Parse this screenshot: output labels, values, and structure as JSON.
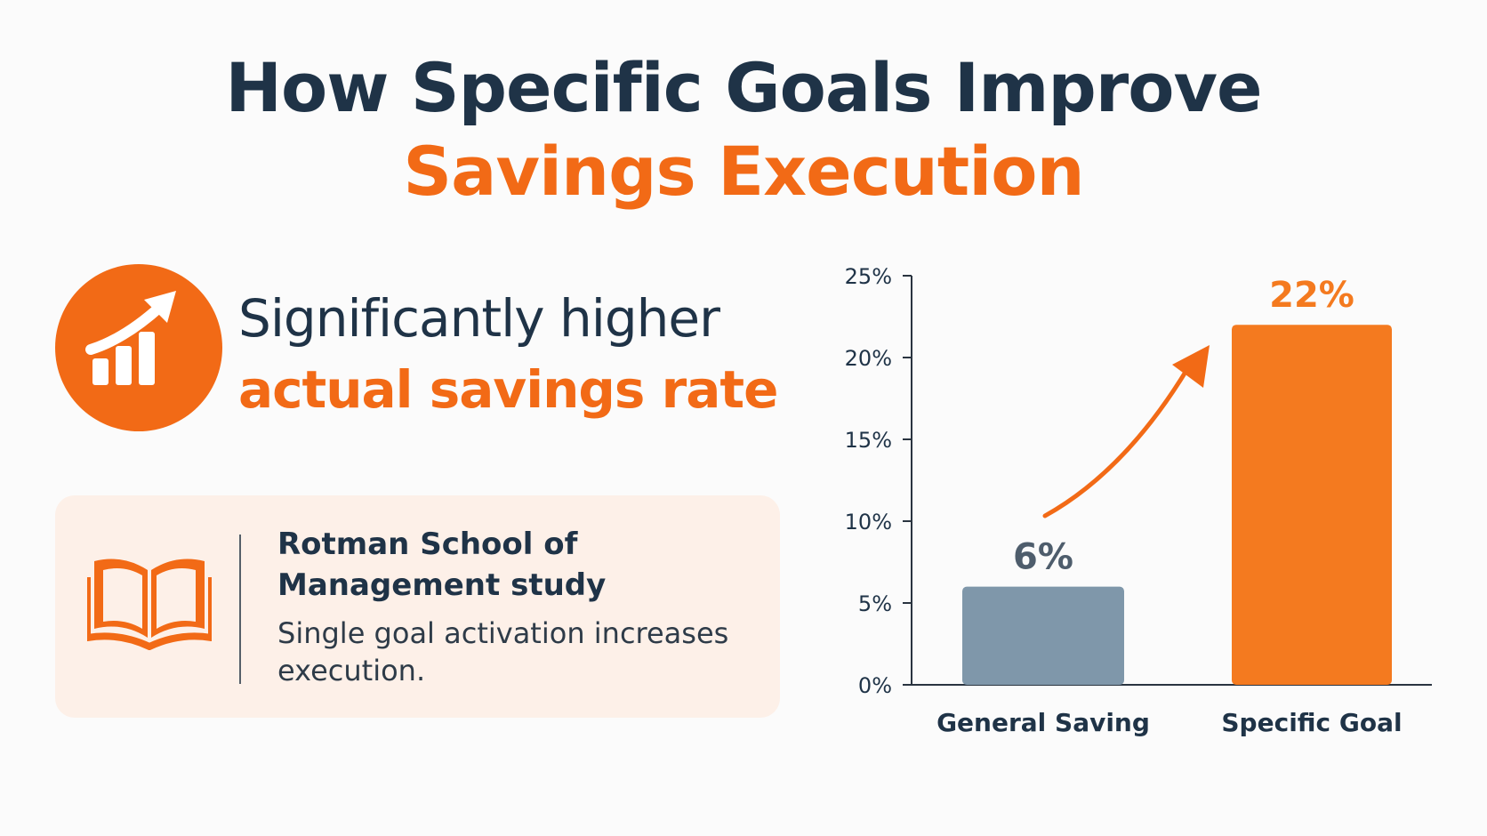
{
  "title": {
    "line1": "How Specific Goals Improve",
    "line2": "Savings Execution"
  },
  "highlight": {
    "icon": "chart-growth-icon",
    "line1": "Significantly higher",
    "line2": "actual savings rate"
  },
  "study": {
    "icon": "open-book-icon",
    "source": "Rotman School of Management study",
    "description": "Single goal activation increases execution."
  },
  "colors": {
    "accent": "#f26a16",
    "navy": "#1f3347",
    "gray_bar": "#7f97aa",
    "card_bg": "#fdf0e8"
  },
  "chart_data": {
    "type": "bar",
    "categories": [
      "General Saving",
      "Specific Goal"
    ],
    "values": [
      6,
      22
    ],
    "value_labels": [
      "6%",
      "22%"
    ],
    "bar_colors": [
      "#7f97aa",
      "#f47a1f"
    ],
    "ylim": [
      0,
      25
    ],
    "yticks": [
      0,
      5,
      10,
      15,
      20,
      25
    ],
    "ytick_labels": [
      "0%",
      "5%",
      "10%",
      "15%",
      "20%",
      "25%"
    ],
    "grid": false,
    "annotation": "curved arrow from General Saving to Specific Goal"
  }
}
